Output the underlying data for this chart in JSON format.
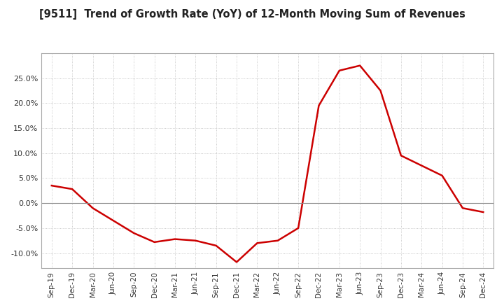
{
  "title": "[9511]  Trend of Growth Rate (YoY) of 12-Month Moving Sum of Revenues",
  "title_fontsize": 10.5,
  "line_color": "#cc0000",
  "background_color": "#ffffff",
  "plot_bg_color": "#ffffff",
  "grid_color": "#bbbbbb",
  "zero_line_color": "#888888",
  "x_labels": [
    "Sep-19",
    "Dec-19",
    "Mar-20",
    "Jun-20",
    "Sep-20",
    "Dec-20",
    "Mar-21",
    "Jun-21",
    "Sep-21",
    "Dec-21",
    "Mar-22",
    "Jun-22",
    "Sep-22",
    "Dec-22",
    "Mar-23",
    "Jun-23",
    "Sep-23",
    "Dec-23",
    "Mar-24",
    "Jun-24",
    "Sep-24",
    "Dec-24"
  ],
  "y_values": [
    3.5,
    2.8,
    -1.0,
    -3.5,
    -6.0,
    -7.8,
    -7.2,
    -7.5,
    -8.5,
    -11.8,
    -8.0,
    -7.5,
    -5.0,
    19.5,
    26.5,
    27.5,
    22.5,
    9.5,
    7.5,
    5.5,
    -1.0,
    -1.8
  ],
  "ylim": [
    -13,
    30
  ],
  "yticks": [
    -10.0,
    -5.0,
    0.0,
    5.0,
    10.0,
    15.0,
    20.0,
    25.0
  ],
  "border_color": "#aaaaaa"
}
